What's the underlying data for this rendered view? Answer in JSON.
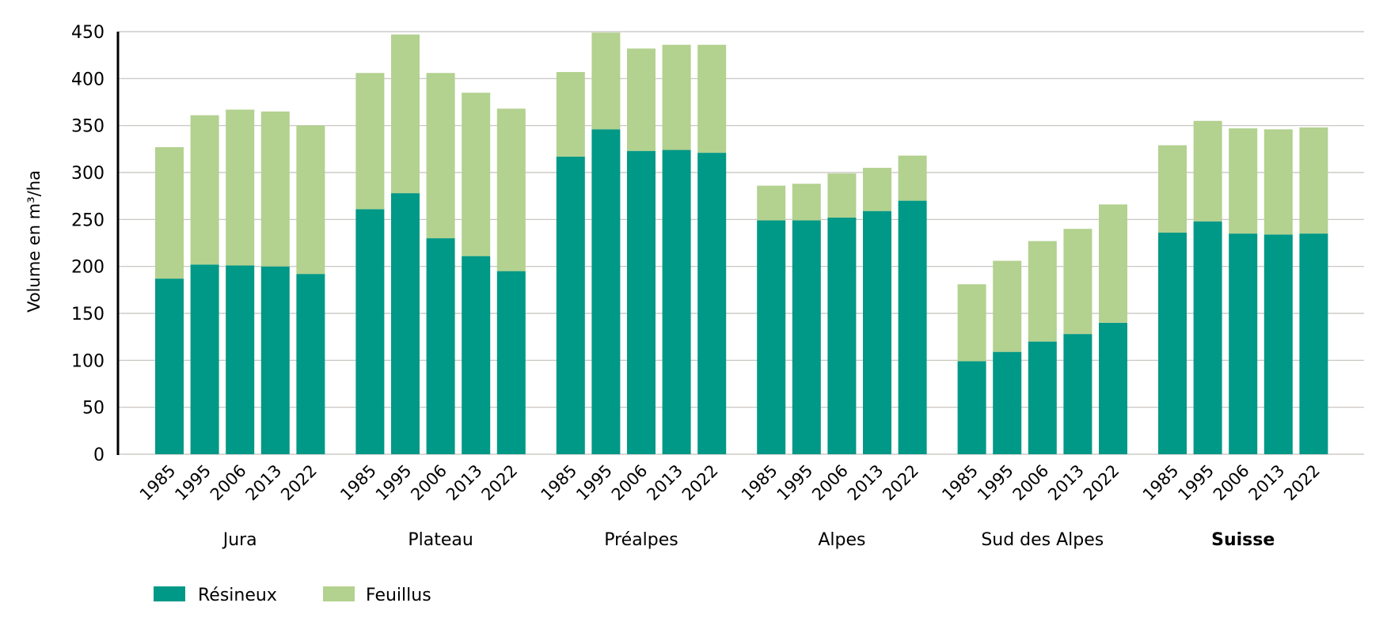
{
  "chart_data": {
    "type": "bar",
    "stacked": true,
    "title": "",
    "xlabel": "",
    "ylabel": "Volume en m³/ha",
    "ylim": [
      0,
      450
    ],
    "yticks": [
      0,
      50,
      100,
      150,
      200,
      250,
      300,
      350,
      400,
      450
    ],
    "grid": true,
    "legend_position": "bottom-left",
    "colors": {
      "Résineux": "#009886",
      "Feuillus": "#b3d18f",
      "grid": "#c4c0bc",
      "axis": "#000000"
    },
    "groups": [
      {
        "name": "Jura",
        "bold": false,
        "years": [
          "1985",
          "1995",
          "2006",
          "2013",
          "2022"
        ]
      },
      {
        "name": "Plateau",
        "bold": false,
        "years": [
          "1985",
          "1995",
          "2006",
          "2013",
          "2022"
        ]
      },
      {
        "name": "Préalpes",
        "bold": false,
        "years": [
          "1985",
          "1995",
          "2006",
          "2013",
          "2022"
        ]
      },
      {
        "name": "Alpes",
        "bold": false,
        "years": [
          "1985",
          "1995",
          "2006",
          "2013",
          "2022"
        ]
      },
      {
        "name": "Sud des Alpes",
        "bold": false,
        "years": [
          "1985",
          "1995",
          "2006",
          "2013",
          "2022"
        ]
      },
      {
        "name": "Suisse",
        "bold": true,
        "years": [
          "1985",
          "1995",
          "2006",
          "2013",
          "2022"
        ]
      }
    ],
    "series": [
      {
        "name": "Résineux",
        "values": [
          [
            187,
            202,
            201,
            200,
            192
          ],
          [
            261,
            278,
            230,
            211,
            195
          ],
          [
            317,
            346,
            323,
            324,
            321
          ],
          [
            249,
            249,
            252,
            259,
            270
          ],
          [
            99,
            109,
            120,
            128,
            140
          ],
          [
            236,
            248,
            235,
            234,
            235
          ]
        ]
      },
      {
        "name": "Feuillus",
        "values": [
          [
            140,
            159,
            166,
            165,
            158
          ],
          [
            145,
            169,
            176,
            174,
            173
          ],
          [
            90,
            103,
            109,
            112,
            115
          ],
          [
            37,
            39,
            47,
            46,
            48
          ],
          [
            82,
            97,
            107,
            112,
            126
          ],
          [
            93,
            107,
            112,
            112,
            113
          ]
        ]
      }
    ],
    "totals": [
      [
        327,
        361,
        367,
        365,
        350
      ],
      [
        406,
        447,
        406,
        385,
        368
      ],
      [
        407,
        449,
        432,
        436,
        436
      ],
      [
        286,
        288,
        299,
        305,
        318
      ],
      [
        181,
        206,
        227,
        240,
        266
      ],
      [
        329,
        355,
        347,
        346,
        348
      ]
    ]
  }
}
